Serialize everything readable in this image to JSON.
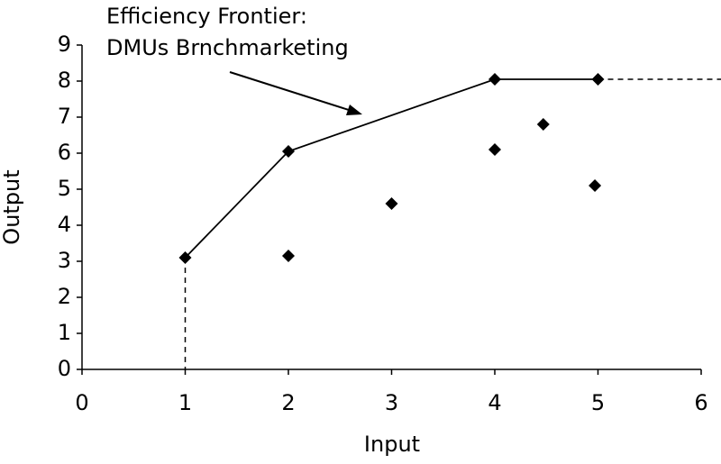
{
  "chart_data": {
    "type": "scatter",
    "annotation": [
      "Efficiency Frontier:",
      "DMUs Brnchmarketing"
    ],
    "x_label": "Input",
    "y_label": "Output",
    "xlim": [
      0,
      6
    ],
    "xticks": [
      0,
      1,
      2,
      3,
      4,
      5,
      6
    ],
    "ylim": [
      0,
      9
    ],
    "yticks": [
      0,
      1,
      2,
      3,
      4,
      5,
      6,
      7,
      8,
      9
    ],
    "grid": false,
    "series": [
      {
        "color": "#000000",
        "line": true,
        "dashed_extensions": true,
        "x": [
          1,
          2,
          4,
          5
        ],
        "values": [
          3.1,
          6.05,
          8.05,
          8.05
        ]
      },
      {
        "color": "#000000",
        "line": false,
        "x": [
          2,
          3,
          4,
          4.47,
          4.97
        ],
        "values": [
          3.15,
          4.6,
          6.1,
          6.8,
          5.1
        ]
      }
    ]
  }
}
